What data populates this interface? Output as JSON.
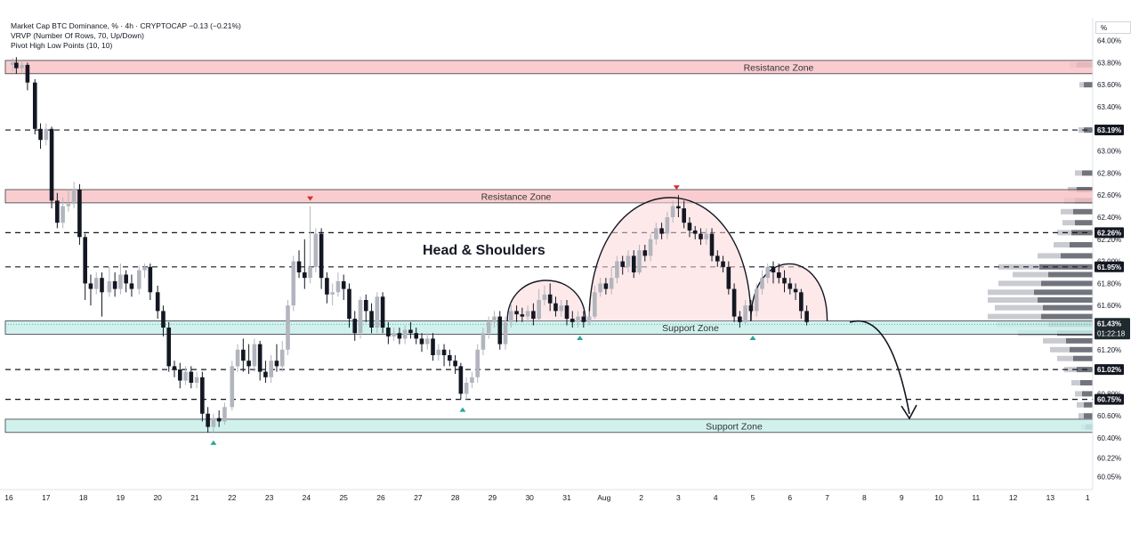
{
  "legend": {
    "line1": "Market Cap BTC Dominance, % · 4h · CRYPTOCAP  −0.13 (−0.21%)",
    "line2": "VRVP (Number Of Rows, 70, Up/Down)",
    "line3": "Pivot High Low Points (10, 10)"
  },
  "axis": {
    "unit_label": "%"
  },
  "chart_data": {
    "type": "candlestick",
    "title": "Market Cap BTC Dominance, % · 4h · CRYPTOCAP",
    "ylim": [
      60.0,
      64.0
    ],
    "y_ticks": [
      "64.00%",
      "63.80%",
      "63.60%",
      "63.40%",
      "63.00%",
      "62.80%",
      "62.60%",
      "62.40%",
      "62.20%",
      "62.00%",
      "61.80%",
      "61.60%",
      "61.20%",
      "60.80%",
      "60.60%",
      "60.40%",
      "60.22%",
      "60.05%"
    ],
    "x_ticks": [
      "16",
      "17",
      "18",
      "19",
      "20",
      "21",
      "22",
      "23",
      "24",
      "25",
      "26",
      "27",
      "28",
      "29",
      "30",
      "31",
      "Aug",
      "2",
      "3",
      "4",
      "5",
      "6",
      "7",
      "8",
      "9",
      "10",
      "11",
      "12",
      "13",
      "1"
    ],
    "price_levels": [
      {
        "value": 63.19,
        "label": "63.19%"
      },
      {
        "value": 62.26,
        "label": "62.26%"
      },
      {
        "value": 61.95,
        "label": "61.95%"
      },
      {
        "value": 61.02,
        "label": "61.02%"
      },
      {
        "value": 60.75,
        "label": "60.75%"
      }
    ],
    "current_price": {
      "value": 61.43,
      "label": "61.43%",
      "countdown": "01:22:18"
    },
    "zones": [
      {
        "name": "Resistance Zone",
        "kind": "resistance",
        "low": 63.7,
        "high": 63.82
      },
      {
        "name": "Resistance Zone",
        "kind": "resistance",
        "low": 62.53,
        "high": 62.65
      },
      {
        "name": "Support Zone",
        "kind": "support",
        "low": 61.34,
        "high": 61.46
      },
      {
        "name": "Support Zone",
        "kind": "support",
        "low": 60.45,
        "high": 60.57
      }
    ],
    "annotation": "Head & Shoulders",
    "candles": [
      [
        16.1,
        63.78,
        63.8,
        63.72,
        63.84
      ],
      [
        16.2,
        63.8,
        63.75,
        63.7,
        63.85
      ],
      [
        16.35,
        63.75,
        63.78,
        63.7,
        63.82
      ],
      [
        16.5,
        63.78,
        63.62,
        63.55,
        63.8
      ],
      [
        16.7,
        63.62,
        63.2,
        63.15,
        63.65
      ],
      [
        16.85,
        63.2,
        63.1,
        63.02,
        63.25
      ],
      [
        17.0,
        63.1,
        63.2,
        63.05,
        63.25
      ],
      [
        17.15,
        63.2,
        62.55,
        62.48,
        63.22
      ],
      [
        17.3,
        62.55,
        62.35,
        62.3,
        62.62
      ],
      [
        17.45,
        62.35,
        62.5,
        62.3,
        62.58
      ],
      [
        17.6,
        62.5,
        62.52,
        62.45,
        62.65
      ],
      [
        17.75,
        62.52,
        62.65,
        62.48,
        62.72
      ],
      [
        17.9,
        62.65,
        62.22,
        62.15,
        62.7
      ],
      [
        18.05,
        62.22,
        61.8,
        61.65,
        62.25
      ],
      [
        18.2,
        61.8,
        61.75,
        61.6,
        61.88
      ],
      [
        18.35,
        61.75,
        61.85,
        61.7,
        61.9
      ],
      [
        18.5,
        61.85,
        61.72,
        61.5,
        61.9
      ],
      [
        18.7,
        61.72,
        61.82,
        61.68,
        61.95
      ],
      [
        18.85,
        61.82,
        61.75,
        61.68,
        61.9
      ],
      [
        19.0,
        61.75,
        61.88,
        61.7,
        61.98
      ],
      [
        19.15,
        61.88,
        61.8,
        61.72,
        61.92
      ],
      [
        19.3,
        61.8,
        61.75,
        61.68,
        61.88
      ],
      [
        19.5,
        61.75,
        61.92,
        61.7,
        61.96
      ],
      [
        19.65,
        61.92,
        61.95,
        61.85,
        61.98
      ],
      [
        19.8,
        61.95,
        61.72,
        61.65,
        61.98
      ],
      [
        20.0,
        61.72,
        61.55,
        61.48,
        61.78
      ],
      [
        20.15,
        61.55,
        61.4,
        61.32,
        61.6
      ],
      [
        20.3,
        61.4,
        61.05,
        61.0,
        61.45
      ],
      [
        20.45,
        61.05,
        61.02,
        60.95,
        61.1
      ],
      [
        20.6,
        61.02,
        60.92,
        60.85,
        61.08
      ],
      [
        20.75,
        60.92,
        61.0,
        60.88,
        61.05
      ],
      [
        20.9,
        61.0,
        60.9,
        60.85,
        61.05
      ],
      [
        21.05,
        60.9,
        60.95,
        60.85,
        61.0
      ],
      [
        21.2,
        60.95,
        60.62,
        60.55,
        61.0
      ],
      [
        21.35,
        60.62,
        60.5,
        60.45,
        60.68
      ],
      [
        21.5,
        60.5,
        60.58,
        60.45,
        60.62
      ],
      [
        21.65,
        60.58,
        60.55,
        60.5,
        60.65
      ],
      [
        21.8,
        60.55,
        60.68,
        60.52,
        60.72
      ],
      [
        22.0,
        60.68,
        61.05,
        60.65,
        61.1
      ],
      [
        22.15,
        61.05,
        61.2,
        61.0,
        61.25
      ],
      [
        22.3,
        61.2,
        61.1,
        61.0,
        61.3
      ],
      [
        22.45,
        61.1,
        61.05,
        60.98,
        61.25
      ],
      [
        22.6,
        61.05,
        61.25,
        61.0,
        61.3
      ],
      [
        22.75,
        61.25,
        61.0,
        60.92,
        61.28
      ],
      [
        22.9,
        61.0,
        60.95,
        60.9,
        61.1
      ],
      [
        23.05,
        60.95,
        61.1,
        60.9,
        61.15
      ],
      [
        23.2,
        61.1,
        61.05,
        61.0,
        61.25
      ],
      [
        23.35,
        61.05,
        61.2,
        61.0,
        61.28
      ],
      [
        23.5,
        61.2,
        61.6,
        61.15,
        61.65
      ],
      [
        23.65,
        61.6,
        62.0,
        61.55,
        62.05
      ],
      [
        23.8,
        62.0,
        61.9,
        61.85,
        62.1
      ],
      [
        23.95,
        61.9,
        61.85,
        61.75,
        62.2
      ],
      [
        24.1,
        61.85,
        61.95,
        61.8,
        62.5
      ],
      [
        24.25,
        61.95,
        62.25,
        61.9,
        62.3
      ],
      [
        24.4,
        62.25,
        61.85,
        61.75,
        62.3
      ],
      [
        24.55,
        61.85,
        61.7,
        61.62,
        61.9
      ],
      [
        24.7,
        61.7,
        61.72,
        61.6,
        61.8
      ],
      [
        24.85,
        61.72,
        61.82,
        61.68,
        61.9
      ],
      [
        25.0,
        61.82,
        61.75,
        61.65,
        61.88
      ],
      [
        25.15,
        61.75,
        61.48,
        61.4,
        61.8
      ],
      [
        25.3,
        61.48,
        61.35,
        61.28,
        61.55
      ],
      [
        25.45,
        61.35,
        61.65,
        61.3,
        61.68
      ],
      [
        25.6,
        61.65,
        61.55,
        61.45,
        61.7
      ],
      [
        25.75,
        61.55,
        61.4,
        61.35,
        61.62
      ],
      [
        25.9,
        61.4,
        61.68,
        61.35,
        61.72
      ],
      [
        26.05,
        61.68,
        61.4,
        61.35,
        61.72
      ],
      [
        26.2,
        61.4,
        61.32,
        61.25,
        61.45
      ],
      [
        26.35,
        61.32,
        61.35,
        61.28,
        61.4
      ],
      [
        26.5,
        61.35,
        61.3,
        61.25,
        61.4
      ],
      [
        26.65,
        61.3,
        61.38,
        61.25,
        61.42
      ],
      [
        26.8,
        61.38,
        61.35,
        61.3,
        61.45
      ],
      [
        26.95,
        61.35,
        61.3,
        61.25,
        61.4
      ],
      [
        27.1,
        61.3,
        61.25,
        61.18,
        61.35
      ],
      [
        27.25,
        61.25,
        61.3,
        61.2,
        61.35
      ],
      [
        27.4,
        61.3,
        61.15,
        61.1,
        61.35
      ],
      [
        27.55,
        61.15,
        61.2,
        61.1,
        61.25
      ],
      [
        27.7,
        61.2,
        61.15,
        61.05,
        61.25
      ],
      [
        27.85,
        61.15,
        61.1,
        61.05,
        61.2
      ],
      [
        28.0,
        61.1,
        61.05,
        60.98,
        61.15
      ],
      [
        28.15,
        61.05,
        60.8,
        60.75,
        61.08
      ],
      [
        28.3,
        60.8,
        60.9,
        60.75,
        60.95
      ],
      [
        28.45,
        60.9,
        60.95,
        60.85,
        61.0
      ],
      [
        28.6,
        60.95,
        61.2,
        60.9,
        61.25
      ],
      [
        28.75,
        61.2,
        61.35,
        61.15,
        61.4
      ],
      [
        28.9,
        61.35,
        61.45,
        61.3,
        61.5
      ],
      [
        29.05,
        61.45,
        61.5,
        61.4,
        61.55
      ],
      [
        29.2,
        61.5,
        61.25,
        61.2,
        61.55
      ],
      [
        29.35,
        61.25,
        61.45,
        61.2,
        61.5
      ],
      [
        29.5,
        61.45,
        61.55,
        61.4,
        61.62
      ],
      [
        29.65,
        61.55,
        61.52,
        61.45,
        61.6
      ],
      [
        29.8,
        61.52,
        61.5,
        61.45,
        61.58
      ],
      [
        29.95,
        61.5,
        61.55,
        61.45,
        61.6
      ],
      [
        30.1,
        61.55,
        61.48,
        61.42,
        61.62
      ],
      [
        30.25,
        61.48,
        61.65,
        61.45,
        61.75
      ],
      [
        30.4,
        61.65,
        61.7,
        61.6,
        61.78
      ],
      [
        30.55,
        61.7,
        61.62,
        61.55,
        61.8
      ],
      [
        30.7,
        61.62,
        61.55,
        61.5,
        61.68
      ],
      [
        30.85,
        61.55,
        61.6,
        61.5,
        61.65
      ],
      [
        31.0,
        61.6,
        61.48,
        61.42,
        61.65
      ],
      [
        31.15,
        61.48,
        61.45,
        61.4,
        61.55
      ],
      [
        31.3,
        61.45,
        61.5,
        61.4,
        61.55
      ],
      [
        31.45,
        61.5,
        61.45,
        61.4,
        61.55
      ],
      [
        31.6,
        61.45,
        61.5,
        61.42,
        61.55
      ],
      [
        31.75,
        61.5,
        61.72,
        61.48,
        61.78
      ],
      [
        31.9,
        61.72,
        61.8,
        61.68,
        61.85
      ],
      [
        32.05,
        61.8,
        61.75,
        61.7,
        61.85
      ],
      [
        32.2,
        61.75,
        61.85,
        61.7,
        61.95
      ],
      [
        32.35,
        61.85,
        62.0,
        61.8,
        62.05
      ],
      [
        32.5,
        62.0,
        61.95,
        61.88,
        62.05
      ],
      [
        32.65,
        61.95,
        62.05,
        61.9,
        62.1
      ],
      [
        32.8,
        62.05,
        61.9,
        61.85,
        62.1
      ],
      [
        32.95,
        61.9,
        62.1,
        61.88,
        62.15
      ],
      [
        33.1,
        62.1,
        62.05,
        62.0,
        62.15
      ],
      [
        33.25,
        62.05,
        62.2,
        62.0,
        62.25
      ],
      [
        33.4,
        62.2,
        62.3,
        62.15,
        62.35
      ],
      [
        33.55,
        62.3,
        62.25,
        62.2,
        62.35
      ],
      [
        33.7,
        62.25,
        62.4,
        62.2,
        62.45
      ],
      [
        33.85,
        62.4,
        62.5,
        62.35,
        62.55
      ],
      [
        34.0,
        62.5,
        62.48,
        62.4,
        62.6
      ],
      [
        34.15,
        62.48,
        62.35,
        62.3,
        62.55
      ],
      [
        34.3,
        62.35,
        62.28,
        62.22,
        62.4
      ],
      [
        34.45,
        62.28,
        62.25,
        62.2,
        62.32
      ],
      [
        34.6,
        62.25,
        62.2,
        62.15,
        62.3
      ],
      [
        34.75,
        62.2,
        62.25,
        62.15,
        62.3
      ],
      [
        34.9,
        62.25,
        62.05,
        62.0,
        62.3
      ],
      [
        35.05,
        62.05,
        62.0,
        61.95,
        62.1
      ],
      [
        35.2,
        62.0,
        61.95,
        61.9,
        62.05
      ],
      [
        35.35,
        61.95,
        61.75,
        61.7,
        62.0
      ],
      [
        35.5,
        61.75,
        61.5,
        61.45,
        61.8
      ],
      [
        35.65,
        61.5,
        61.45,
        61.4,
        61.55
      ],
      [
        35.8,
        61.45,
        61.6,
        61.42,
        61.65
      ],
      [
        35.95,
        61.6,
        61.55,
        61.5,
        61.65
      ],
      [
        36.1,
        61.55,
        61.75,
        61.5,
        61.8
      ],
      [
        36.25,
        61.75,
        61.85,
        61.7,
        61.92
      ],
      [
        36.4,
        61.85,
        61.95,
        61.8,
        61.98
      ],
      [
        36.55,
        61.95,
        61.9,
        61.8,
        62.0
      ],
      [
        36.7,
        61.9,
        61.85,
        61.8,
        61.98
      ],
      [
        36.85,
        61.85,
        61.8,
        61.72,
        61.92
      ],
      [
        37.0,
        61.8,
        61.75,
        61.7,
        61.85
      ],
      [
        37.15,
        61.75,
        61.72,
        61.65,
        61.8
      ],
      [
        37.3,
        61.72,
        61.55,
        61.48,
        61.75
      ],
      [
        37.45,
        61.55,
        61.45,
        61.42,
        61.6
      ]
    ]
  },
  "volume_profile": [
    {
      "y": 63.78,
      "up": 8,
      "down": 18
    },
    {
      "y": 63.6,
      "up": 5,
      "down": 10
    },
    {
      "y": 63.19,
      "up": 6,
      "down": 10
    },
    {
      "y": 62.8,
      "up": 8,
      "down": 12
    },
    {
      "y": 62.65,
      "up": 10,
      "down": 18
    },
    {
      "y": 62.55,
      "up": 12,
      "down": 20
    },
    {
      "y": 62.45,
      "up": 14,
      "down": 22
    },
    {
      "y": 62.35,
      "up": 14,
      "down": 20
    },
    {
      "y": 62.26,
      "up": 16,
      "down": 24
    },
    {
      "y": 62.15,
      "up": 18,
      "down": 26
    },
    {
      "y": 62.05,
      "up": 26,
      "down": 36
    },
    {
      "y": 61.95,
      "up": 46,
      "down": 60
    },
    {
      "y": 61.88,
      "up": 40,
      "down": 50
    },
    {
      "y": 61.8,
      "up": 48,
      "down": 58
    },
    {
      "y": 61.72,
      "up": 52,
      "down": 66
    },
    {
      "y": 61.65,
      "up": 56,
      "down": 62
    },
    {
      "y": 61.58,
      "up": 54,
      "down": 56
    },
    {
      "y": 61.5,
      "up": 60,
      "down": 58
    },
    {
      "y": 61.43,
      "up": 58,
      "down": 50
    },
    {
      "y": 61.35,
      "up": 44,
      "down": 40
    },
    {
      "y": 61.28,
      "up": 26,
      "down": 30
    },
    {
      "y": 61.2,
      "up": 22,
      "down": 26
    },
    {
      "y": 61.12,
      "up": 18,
      "down": 22
    },
    {
      "y": 61.02,
      "up": 14,
      "down": 18
    },
    {
      "y": 60.9,
      "up": 10,
      "down": 14
    },
    {
      "y": 60.8,
      "up": 8,
      "down": 12
    },
    {
      "y": 60.7,
      "up": 8,
      "down": 10
    },
    {
      "y": 60.6,
      "up": 6,
      "down": 10
    },
    {
      "y": 60.5,
      "up": 5,
      "down": 8
    }
  ],
  "pivots": {
    "highs": [
      {
        "x": 24.1,
        "y": 62.5
      },
      {
        "x": 33.95,
        "y": 62.6
      }
    ],
    "lows": [
      {
        "x": 21.5,
        "y": 60.45
      },
      {
        "x": 28.2,
        "y": 60.75
      },
      {
        "x": 31.35,
        "y": 61.4
      },
      {
        "x": 36.0,
        "y": 61.4
      }
    ]
  },
  "colors": {
    "bull": "#b2b5be",
    "bear": "#131722",
    "resistance_fill": "#f8c5c7",
    "resistance_edge": "#131722",
    "support_fill": "#c9efeb",
    "support_edge": "#131722",
    "hs_fill": "#fbd7d8",
    "pivot_high": "#d32f2f",
    "pivot_low": "#26a69a",
    "vp_up": "#b2b5be",
    "vp_down": "#434651",
    "badge_bg": "#131722",
    "price_badge_bg": "#1f2a2e"
  }
}
